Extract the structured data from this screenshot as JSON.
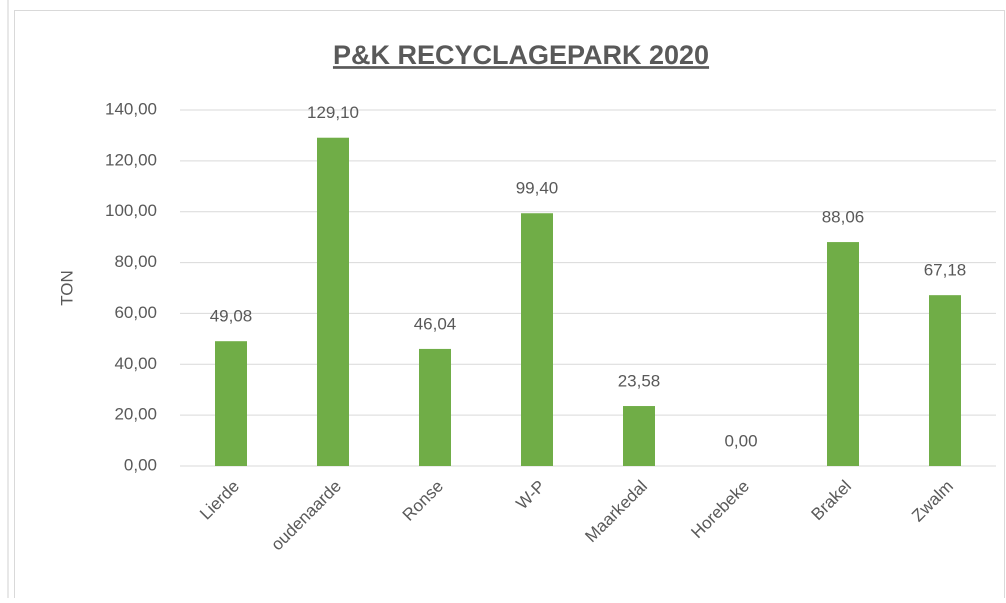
{
  "chart_data": {
    "type": "bar",
    "title": "P&K RECYCLAGEPARK 2020",
    "y_label": "TON",
    "categories": [
      "Lierde",
      "oudenaarde",
      "Ronse",
      "W-P",
      "Maarkedal",
      "Horebeke",
      "Brakel",
      "Zwalm"
    ],
    "values": [
      49.08,
      129.1,
      46.04,
      99.4,
      23.58,
      0,
      88.06,
      67.18
    ],
    "value_labels": [
      "49,08",
      "129,10",
      "46,04",
      "99,40",
      "23,58",
      "0,00",
      "88,06",
      "67,18"
    ],
    "color": "#70ad47",
    "ylim": [
      0,
      140
    ],
    "yticks": [
      {
        "value": 0,
        "label": "0,00"
      },
      {
        "value": 20,
        "label": "20,00"
      },
      {
        "value": 40,
        "label": "40,00"
      },
      {
        "value": 60,
        "label": "60,00"
      },
      {
        "value": 80,
        "label": "80,00"
      },
      {
        "value": 100,
        "label": "100,00"
      },
      {
        "value": 120,
        "label": "120,00"
      },
      {
        "value": 140,
        "label": "140,00"
      }
    ],
    "grid": true
  }
}
